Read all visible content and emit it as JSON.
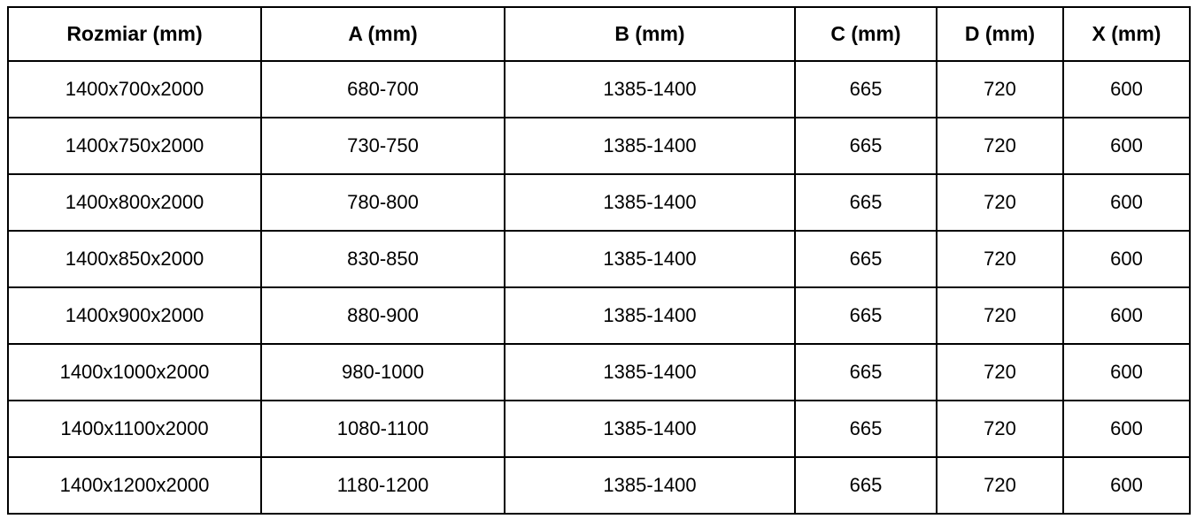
{
  "colors": {
    "border": "#000000",
    "background": "#ffffff",
    "text": "#000000"
  },
  "table": {
    "headers": [
      "Rozmiar (mm)",
      "A (mm)",
      "B (mm)",
      "C (mm)",
      "D (mm)",
      "X (mm)"
    ],
    "rows": [
      [
        "1400x700x2000",
        "680-700",
        "1385-1400",
        "665",
        "720",
        "600"
      ],
      [
        "1400x750x2000",
        "730-750",
        "1385-1400",
        "665",
        "720",
        "600"
      ],
      [
        "1400x800x2000",
        "780-800",
        "1385-1400",
        "665",
        "720",
        "600"
      ],
      [
        "1400x850x2000",
        "830-850",
        "1385-1400",
        "665",
        "720",
        "600"
      ],
      [
        "1400x900x2000",
        "880-900",
        "1385-1400",
        "665",
        "720",
        "600"
      ],
      [
        "1400x1000x2000",
        "980-1000",
        "1385-1400",
        "665",
        "720",
        "600"
      ],
      [
        "1400x1100x2000",
        "1080-1100",
        "1385-1400",
        "665",
        "720",
        "600"
      ],
      [
        "1400x1200x2000",
        "1180-1200",
        "1385-1400",
        "665",
        "720",
        "600"
      ]
    ]
  },
  "chart_data": {
    "type": "table",
    "title": "",
    "columns": [
      "Rozmiar (mm)",
      "A (mm)",
      "B (mm)",
      "C (mm)",
      "D (mm)",
      "X (mm)"
    ],
    "rows": [
      [
        "1400x700x2000",
        "680-700",
        "1385-1400",
        "665",
        "720",
        "600"
      ],
      [
        "1400x750x2000",
        "730-750",
        "1385-1400",
        "665",
        "720",
        "600"
      ],
      [
        "1400x800x2000",
        "780-800",
        "1385-1400",
        "665",
        "720",
        "600"
      ],
      [
        "1400x850x2000",
        "830-850",
        "1385-1400",
        "665",
        "720",
        "600"
      ],
      [
        "1400x900x2000",
        "880-900",
        "1385-1400",
        "665",
        "720",
        "600"
      ],
      [
        "1400x1000x2000",
        "980-1000",
        "1385-1400",
        "665",
        "720",
        "600"
      ],
      [
        "1400x1100x2000",
        "1080-1100",
        "1385-1400",
        "665",
        "720",
        "600"
      ],
      [
        "1400x1200x2000",
        "1180-1200",
        "1385-1400",
        "665",
        "720",
        "600"
      ]
    ]
  }
}
